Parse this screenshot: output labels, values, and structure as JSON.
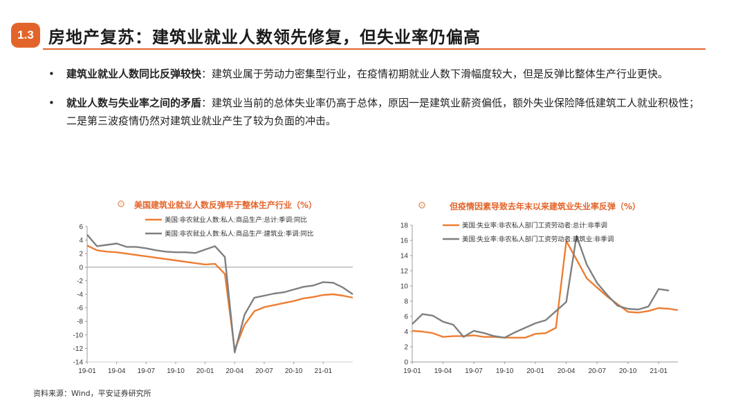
{
  "header": {
    "badge": "1.3",
    "title": "房地产复苏：建筑业就业人数领先修复，但失业率仍偏高"
  },
  "bullets": [
    {
      "lead": "建筑业就业人数同比反弹较快",
      "text": "：建筑业属于劳动力密集型行业，在疫情初期就业人数下滑幅度较大，但是反弹比整体生产行业更快。"
    },
    {
      "lead": "就业人数与失业率之间的矛盾",
      "text": "：建筑业当前的总体失业率仍高于总体，原因一是建筑业薪资偏低，额外失业保险降低建筑工人就业积极性；二是第三波疫情仍然对建筑业就业产生了较为负面的冲击。"
    }
  ],
  "source": "资料来源：Wind，平安证券研究所",
  "colors": {
    "accent": "#e3642a",
    "orange_series": "#ed7d31",
    "gray_series": "#7f7f7f"
  },
  "chart_data": [
    {
      "type": "line",
      "title": "美国建筑业就业人数反弹早于整体生产行业（%）",
      "ylim": [
        -14,
        6
      ],
      "yticks": [
        6,
        4,
        2,
        0,
        -2,
        -4,
        -6,
        -8,
        -10,
        -12,
        -14
      ],
      "xticks": [
        "19-01",
        "19-04",
        "19-07",
        "19-10",
        "20-01",
        "20-04",
        "20-07",
        "20-10",
        "21-01"
      ],
      "x_range_months": [
        0,
        27
      ],
      "series": [
        {
          "name": "美国:非农就业人数:私人:商品生产:总计:季调:同比",
          "color": "#ed7d31",
          "points": [
            [
              0,
              3.2
            ],
            [
              1,
              2.5
            ],
            [
              2,
              2.3
            ],
            [
              3,
              2.2
            ],
            [
              4,
              2.0
            ],
            [
              5,
              1.8
            ],
            [
              6,
              1.6
            ],
            [
              7,
              1.4
            ],
            [
              8,
              1.2
            ],
            [
              9,
              1.0
            ],
            [
              10,
              0.8
            ],
            [
              11,
              0.6
            ],
            [
              12,
              0.4
            ],
            [
              13,
              0.5
            ],
            [
              14,
              -1.0
            ],
            [
              15,
              -12.2
            ],
            [
              16,
              -8.5
            ],
            [
              17,
              -6.5
            ],
            [
              18,
              -5.9
            ],
            [
              19,
              -5.6
            ],
            [
              20,
              -5.3
            ],
            [
              21,
              -5.0
            ],
            [
              22,
              -4.6
            ],
            [
              23,
              -4.4
            ],
            [
              24,
              -4.1
            ],
            [
              25,
              -4.0
            ],
            [
              26,
              -4.2
            ],
            [
              27,
              -4.5
            ]
          ]
        },
        {
          "name": "美国:非农就业人数:私人:商品生产:建筑业:季调:同比",
          "color": "#7f7f7f",
          "points": [
            [
              0,
              4.8
            ],
            [
              1,
              3.1
            ],
            [
              2,
              3.3
            ],
            [
              3,
              3.5
            ],
            [
              4,
              3.0
            ],
            [
              5,
              3.0
            ],
            [
              6,
              2.8
            ],
            [
              7,
              2.5
            ],
            [
              8,
              2.3
            ],
            [
              9,
              2.2
            ],
            [
              10,
              2.2
            ],
            [
              11,
              2.1
            ],
            [
              12,
              2.6
            ],
            [
              13,
              3.1
            ],
            [
              14,
              1.5
            ],
            [
              15,
              -12.6
            ],
            [
              16,
              -7.0
            ],
            [
              17,
              -4.5
            ],
            [
              18,
              -4.2
            ],
            [
              19,
              -3.9
            ],
            [
              20,
              -3.7
            ],
            [
              21,
              -3.3
            ],
            [
              22,
              -2.9
            ],
            [
              23,
              -2.7
            ],
            [
              24,
              -2.2
            ],
            [
              25,
              -2.3
            ],
            [
              26,
              -3.0
            ],
            [
              27,
              -4.0
            ]
          ]
        }
      ]
    },
    {
      "type": "line",
      "title": "但疫情因素导致去年末以来建筑业失业率反弹（%）",
      "ylim": [
        0,
        18
      ],
      "yticks": [
        18,
        16,
        14,
        12,
        10,
        8,
        6,
        4,
        2,
        0
      ],
      "xticks": [
        "19-01",
        "19-04",
        "19-07",
        "19-10",
        "20-01",
        "20-04",
        "20-07",
        "20-10",
        "21-01"
      ],
      "x_range_months": [
        0,
        26
      ],
      "series": [
        {
          "name": "美国:失业率:非农私人部门工资劳动者:总计:非季调",
          "color": "#ed7d31",
          "points": [
            [
              0,
              4.1
            ],
            [
              1,
              4.0
            ],
            [
              2,
              3.8
            ],
            [
              3,
              3.3
            ],
            [
              4,
              3.4
            ],
            [
              5,
              3.4
            ],
            [
              6,
              3.5
            ],
            [
              7,
              3.3
            ],
            [
              8,
              3.3
            ],
            [
              9,
              3.2
            ],
            [
              10,
              3.2
            ],
            [
              11,
              3.2
            ],
            [
              12,
              3.7
            ],
            [
              13,
              3.8
            ],
            [
              14,
              4.5
            ],
            [
              15,
              15.9
            ],
            [
              16,
              13.5
            ],
            [
              17,
              11.0
            ],
            [
              18,
              9.8
            ],
            [
              19,
              8.6
            ],
            [
              20,
              7.6
            ],
            [
              21,
              6.6
            ],
            [
              22,
              6.5
            ],
            [
              23,
              6.7
            ],
            [
              24,
              7.1
            ],
            [
              25,
              7.0
            ],
            [
              26,
              6.8
            ]
          ]
        },
        {
          "name": "美国:失业率:非农私人部门工资劳动者:建筑业:非季调",
          "color": "#7f7f7f",
          "points": [
            [
              0,
              5.0
            ],
            [
              1,
              6.3
            ],
            [
              2,
              6.1
            ],
            [
              3,
              5.3
            ],
            [
              4,
              4.9
            ],
            [
              5,
              3.3
            ],
            [
              6,
              4.1
            ],
            [
              7,
              3.8
            ],
            [
              8,
              3.4
            ],
            [
              9,
              3.2
            ],
            [
              10,
              3.9
            ],
            [
              11,
              4.5
            ],
            [
              12,
              5.1
            ],
            [
              13,
              5.5
            ],
            [
              14,
              6.7
            ],
            [
              15,
              7.9
            ],
            [
              16,
              16.6
            ],
            [
              17,
              12.8
            ],
            [
              18,
              10.4
            ],
            [
              19,
              8.8
            ],
            [
              20,
              7.4
            ],
            [
              21,
              7.0
            ],
            [
              22,
              6.9
            ],
            [
              23,
              7.3
            ],
            [
              24,
              9.6
            ],
            [
              25,
              9.4
            ]
          ]
        }
      ]
    }
  ]
}
